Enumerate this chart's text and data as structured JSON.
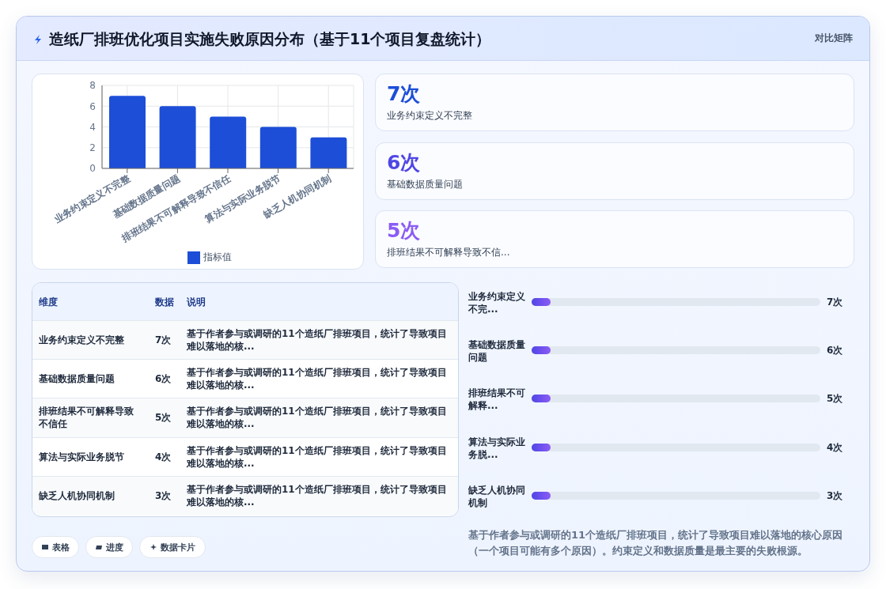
{
  "chart_data": [
    {
      "type": "bar",
      "title": "造纸厂排班优化项目实施失败原因分布（基于11个项目复盘统计）",
      "annotations": [
        "对比矩阵",
        "维度",
        "数据",
        "说明",
        "基于作者参与或调研的11个造纸厂排班项目，统计了导致项目难以落地的核...",
        "基于作者参与或调研的11个造纸厂排班项目，统计了导致项目难以落地的核...",
        "基于作者参与或调研的11个造纸厂排班项目，统计了导致项目难以落地的核...",
        "基于作者参与或调研的11个造纸厂排班项目，统计了导致项目难以落地的核...",
        "基于作者参与或调研的11个造纸厂排班项目，统计了导致项目难以落地的核...",
        "业务约束定义不完...",
        "基础数据质量问题",
        "排班结果不可解释...",
        "算法与实际业务脱...",
        "缺乏人机协同机制",
        "基于作者参与或调研的11个造纸厂排班项目，统计了导致项目难以落地的核心原因（一个项目可能有多个原因）。约束定义和数据质量是最主要的失败根源。"
      ],
      "value_labels": [
        "7次",
        "6次",
        "5次",
        "4次",
        "3次"
      ],
      "categories": [
        "业务约束定义不完整",
        "基础数据质量问题",
        "排班结果不可解释导致不信任",
        "算法与实际业务脱节",
        "缺乏人机协同机制"
      ],
      "series": [
        {
          "name": "指标值",
          "color": "#1d4ed8",
          "values": [
            7,
            6,
            5,
            4,
            3
          ]
        }
      ],
      "ylim": [
        0,
        8
      ],
      "yticks": [
        0,
        2,
        4,
        6,
        8
      ],
      "grid": true,
      "legend": "bottom"
    },
    {
      "type": "other",
      "annotations": [
        "7次",
        "业务约束定义不完整",
        "6次",
        "基础数据质量问题",
        "5次",
        "排班结果不可解释导致不信..."
      ]
    },
    {
      "type": "other",
      "annotations": [
        "表格",
        "进度",
        "数据卡片"
      ]
    }
  ]
}
